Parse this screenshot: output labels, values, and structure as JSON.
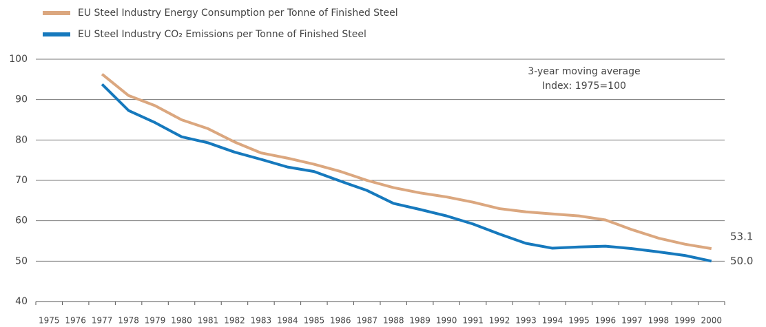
{
  "chart_data": {
    "type": "line",
    "annotations": [
      "3-year moving average",
      "Index: 1975=100"
    ],
    "categories": [
      "1975",
      "1976",
      "1977",
      "1978",
      "1979",
      "1980",
      "1981",
      "1982",
      "1983",
      "1984",
      "1985",
      "1986",
      "1987",
      "1988",
      "1989",
      "1990",
      "1991",
      "1992",
      "1993",
      "1994",
      "1995",
      "1996",
      "1997",
      "1998",
      "1999",
      "2000"
    ],
    "series": [
      {
        "name": "EU Steel Industry Energy Consumption per Tonne of Finished Steel",
        "color": "#dba77f",
        "values": [
          null,
          null,
          96.3,
          91.0,
          88.5,
          85.0,
          82.8,
          79.5,
          76.8,
          75.5,
          74.0,
          72.2,
          70.0,
          68.2,
          66.9,
          65.9,
          64.6,
          63.0,
          62.2,
          61.7,
          61.2,
          60.2,
          57.8,
          55.7,
          54.2,
          53.1
        ],
        "value_labels": [
          null,
          null,
          null,
          null,
          null,
          null,
          null,
          null,
          null,
          null,
          null,
          null,
          null,
          null,
          null,
          null,
          null,
          null,
          null,
          null,
          null,
          null,
          null,
          null,
          null,
          "53.1"
        ]
      },
      {
        "name": "EU Steel Industry CO₂ Emissions per Tonne of Finished Steel",
        "color": "#1679bd",
        "values": [
          null,
          null,
          93.8,
          87.3,
          84.3,
          80.8,
          79.3,
          77.0,
          75.2,
          73.3,
          72.2,
          69.8,
          67.5,
          64.3,
          62.8,
          61.2,
          59.2,
          56.7,
          54.4,
          53.2,
          53.5,
          53.7,
          53.1,
          52.3,
          51.4,
          50.0
        ],
        "value_labels": [
          null,
          null,
          null,
          null,
          null,
          null,
          null,
          null,
          null,
          null,
          null,
          null,
          null,
          null,
          null,
          null,
          null,
          null,
          null,
          null,
          null,
          null,
          null,
          null,
          null,
          "50.0"
        ]
      }
    ],
    "ylim": [
      40,
      100
    ],
    "yticks": [
      40,
      50,
      60,
      70,
      80,
      90,
      100
    ],
    "grid": true,
    "legend": "top"
  }
}
